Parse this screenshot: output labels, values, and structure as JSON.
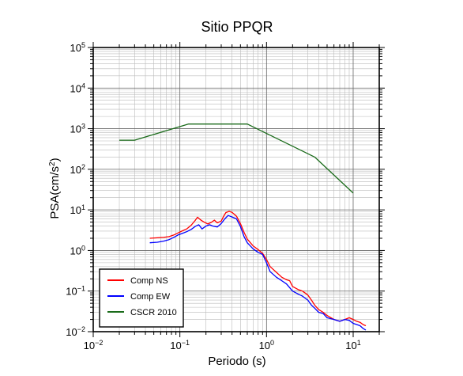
{
  "chart_data": {
    "type": "line",
    "title": "Sitio PPQR",
    "xlabel": "Periodo (s)",
    "ylabel_main": "PSA(cm/s",
    "ylabel_sup": "2",
    "ylabel_close": ")",
    "x_scale": "log",
    "y_scale": "log",
    "xlim": [
      0.01,
      20
    ],
    "ylim": [
      0.01,
      100000
    ],
    "grid": true,
    "legend_position": "bottom-left",
    "x_ticks": [
      {
        "value": 0.01,
        "base": "10",
        "exp": "−2"
      },
      {
        "value": 0.1,
        "base": "10",
        "exp": "−1"
      },
      {
        "value": 1,
        "base": "10",
        "exp": "0"
      },
      {
        "value": 10,
        "base": "10",
        "exp": "1"
      }
    ],
    "y_ticks": [
      {
        "value": 0.01,
        "base": "10",
        "exp": "−2"
      },
      {
        "value": 0.1,
        "base": "10",
        "exp": "−1"
      },
      {
        "value": 1,
        "base": "10",
        "exp": "0"
      },
      {
        "value": 10,
        "base": "10",
        "exp": "1"
      },
      {
        "value": 100,
        "base": "10",
        "exp": "2"
      },
      {
        "value": 1000,
        "base": "10",
        "exp": "3"
      },
      {
        "value": 10000,
        "base": "10",
        "exp": "4"
      },
      {
        "value": 100000,
        "base": "10",
        "exp": "5"
      }
    ],
    "series": [
      {
        "name": "Comp NS",
        "color": "#ff0000",
        "points": [
          [
            0.045,
            2.0
          ],
          [
            0.055,
            2.05
          ],
          [
            0.065,
            2.1
          ],
          [
            0.075,
            2.2
          ],
          [
            0.085,
            2.4
          ],
          [
            0.095,
            2.7
          ],
          [
            0.105,
            3.0
          ],
          [
            0.12,
            3.4
          ],
          [
            0.135,
            4.2
          ],
          [
            0.15,
            5.5
          ],
          [
            0.16,
            6.6
          ],
          [
            0.175,
            5.6
          ],
          [
            0.19,
            5.0
          ],
          [
            0.21,
            4.5
          ],
          [
            0.23,
            4.9
          ],
          [
            0.25,
            5.6
          ],
          [
            0.27,
            4.8
          ],
          [
            0.3,
            5.3
          ],
          [
            0.32,
            7.0
          ],
          [
            0.34,
            8.6
          ],
          [
            0.37,
            9.2
          ],
          [
            0.4,
            8.7
          ],
          [
            0.45,
            7.0
          ],
          [
            0.5,
            4.6
          ],
          [
            0.55,
            2.8
          ],
          [
            0.6,
            1.9
          ],
          [
            0.7,
            1.3
          ],
          [
            0.8,
            1.05
          ],
          [
            0.9,
            0.85
          ],
          [
            1.0,
            0.6
          ],
          [
            1.1,
            0.4
          ],
          [
            1.3,
            0.29
          ],
          [
            1.5,
            0.22
          ],
          [
            1.7,
            0.19
          ],
          [
            1.85,
            0.18
          ],
          [
            2.0,
            0.13
          ],
          [
            2.3,
            0.11
          ],
          [
            2.6,
            0.1
          ],
          [
            3.0,
            0.08
          ],
          [
            3.3,
            0.06
          ],
          [
            3.6,
            0.045
          ],
          [
            4.0,
            0.035
          ],
          [
            4.5,
            0.03
          ],
          [
            5.0,
            0.025
          ],
          [
            6.0,
            0.02
          ],
          [
            7.0,
            0.018
          ],
          [
            8.0,
            0.02
          ],
          [
            9.0,
            0.022
          ],
          [
            10.0,
            0.02
          ],
          [
            11.0,
            0.018
          ],
          [
            12.0,
            0.017
          ],
          [
            13.0,
            0.015
          ],
          [
            14.0,
            0.014
          ]
        ]
      },
      {
        "name": "Comp EW",
        "color": "#0000ff",
        "points": [
          [
            0.045,
            1.55
          ],
          [
            0.055,
            1.6
          ],
          [
            0.065,
            1.7
          ],
          [
            0.075,
            1.85
          ],
          [
            0.085,
            2.1
          ],
          [
            0.095,
            2.4
          ],
          [
            0.105,
            2.6
          ],
          [
            0.12,
            2.9
          ],
          [
            0.135,
            3.3
          ],
          [
            0.15,
            3.9
          ],
          [
            0.165,
            4.3
          ],
          [
            0.18,
            3.4
          ],
          [
            0.2,
            4.0
          ],
          [
            0.22,
            4.3
          ],
          [
            0.24,
            4.0
          ],
          [
            0.27,
            3.8
          ],
          [
            0.3,
            4.6
          ],
          [
            0.33,
            6.0
          ],
          [
            0.36,
            7.3
          ],
          [
            0.4,
            6.7
          ],
          [
            0.45,
            6.0
          ],
          [
            0.5,
            3.9
          ],
          [
            0.55,
            2.2
          ],
          [
            0.6,
            1.55
          ],
          [
            0.7,
            1.1
          ],
          [
            0.8,
            0.9
          ],
          [
            0.9,
            0.8
          ],
          [
            1.0,
            0.5
          ],
          [
            1.1,
            0.3
          ],
          [
            1.3,
            0.22
          ],
          [
            1.5,
            0.18
          ],
          [
            1.7,
            0.15
          ],
          [
            2.0,
            0.1
          ],
          [
            2.3,
            0.085
          ],
          [
            2.6,
            0.075
          ],
          [
            3.0,
            0.06
          ],
          [
            3.3,
            0.045
          ],
          [
            3.6,
            0.038
          ],
          [
            4.0,
            0.03
          ],
          [
            4.5,
            0.028
          ],
          [
            5.0,
            0.022
          ],
          [
            6.0,
            0.02
          ],
          [
            7.0,
            0.018
          ],
          [
            8.0,
            0.02
          ],
          [
            9.0,
            0.019
          ],
          [
            10.0,
            0.016
          ],
          [
            11.0,
            0.015
          ],
          [
            12.0,
            0.014
          ],
          [
            13.0,
            0.012
          ],
          [
            14.0,
            0.011
          ]
        ]
      },
      {
        "name": "CSCR 2010",
        "color": "#1a6b1a",
        "points": [
          [
            0.02,
            520
          ],
          [
            0.03,
            520
          ],
          [
            0.125,
            1300
          ],
          [
            0.6,
            1300
          ],
          [
            3.6,
            200
          ],
          [
            10.0,
            26
          ]
        ]
      }
    ]
  }
}
